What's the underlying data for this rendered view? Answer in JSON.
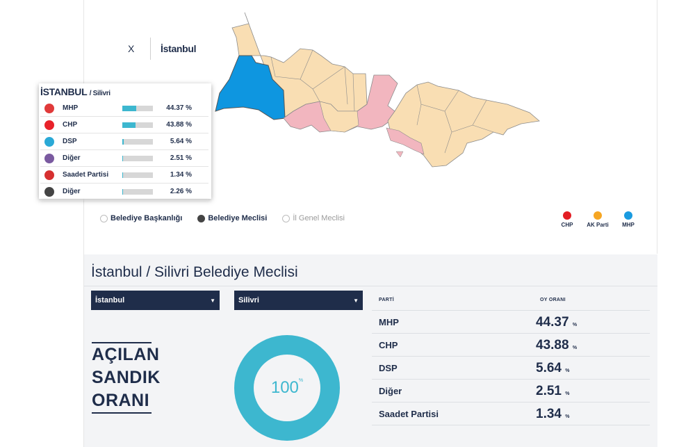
{
  "breadcrumb": {
    "close": "X",
    "city": "İstanbul"
  },
  "popup": {
    "city": "İSTANBUL",
    "district": "/ Silivri",
    "rows": [
      {
        "name": "MHP",
        "pct": "44.37 %",
        "share": 0.4437,
        "logo_color": "#e03a3a"
      },
      {
        "name": "CHP",
        "pct": "43.88 %",
        "share": 0.4388,
        "logo_color": "#e8222a"
      },
      {
        "name": "DSP",
        "pct": "5.64 %",
        "share": 0.0564,
        "logo_color": "#2aa9d6"
      },
      {
        "name": "Diğer",
        "pct": "2.51 %",
        "share": 0.0251,
        "logo_color": "#7a5aa0"
      },
      {
        "name": "Saadet Partisi",
        "pct": "1.34 %",
        "share": 0.0134,
        "logo_color": "#d63030"
      },
      {
        "name": "Diğer",
        "pct": "2.26 %",
        "share": 0.0226,
        "logo_color": "#444444"
      }
    ]
  },
  "election_types": [
    {
      "label": "Belediye Başkanlığı",
      "state": "off"
    },
    {
      "label": "Belediye Meclisi",
      "state": "on"
    },
    {
      "label": "İl Genel Meclisi",
      "state": "disabled"
    }
  ],
  "legend": [
    {
      "label": "CHP",
      "color": "#e31e24"
    },
    {
      "label": "AK Parti",
      "color": "#f6a623"
    },
    {
      "label": "MHP",
      "color": "#1a9be0"
    }
  ],
  "colors": {
    "ak_parti_region": "#f9deb3",
    "chp_region": "#f2b6bf",
    "mhp_region": "#0e96e0",
    "accent": "#3db7cf",
    "navy": "#1f2d4a"
  },
  "results": {
    "title": "İstanbul / Silivri Belediye Meclisi",
    "province_select": "İstanbul",
    "district_select": "Silivri",
    "opened_label": {
      "line1": "AÇILAN",
      "line2": "SANDIK",
      "line3": "ORANI"
    },
    "opened_value": "100",
    "opened_unit": "%",
    "table": {
      "col_party": "PARTİ",
      "col_rate": "OY ORANI",
      "rows": [
        {
          "name": "MHP",
          "value": "44.37",
          "unit": "%"
        },
        {
          "name": "CHP",
          "value": "43.88",
          "unit": "%"
        },
        {
          "name": "DSP",
          "value": "5.64",
          "unit": "%"
        },
        {
          "name": "Diğer",
          "value": "2.51",
          "unit": "%"
        },
        {
          "name": "Saadet Partisi",
          "value": "1.34",
          "unit": "%"
        }
      ]
    }
  }
}
